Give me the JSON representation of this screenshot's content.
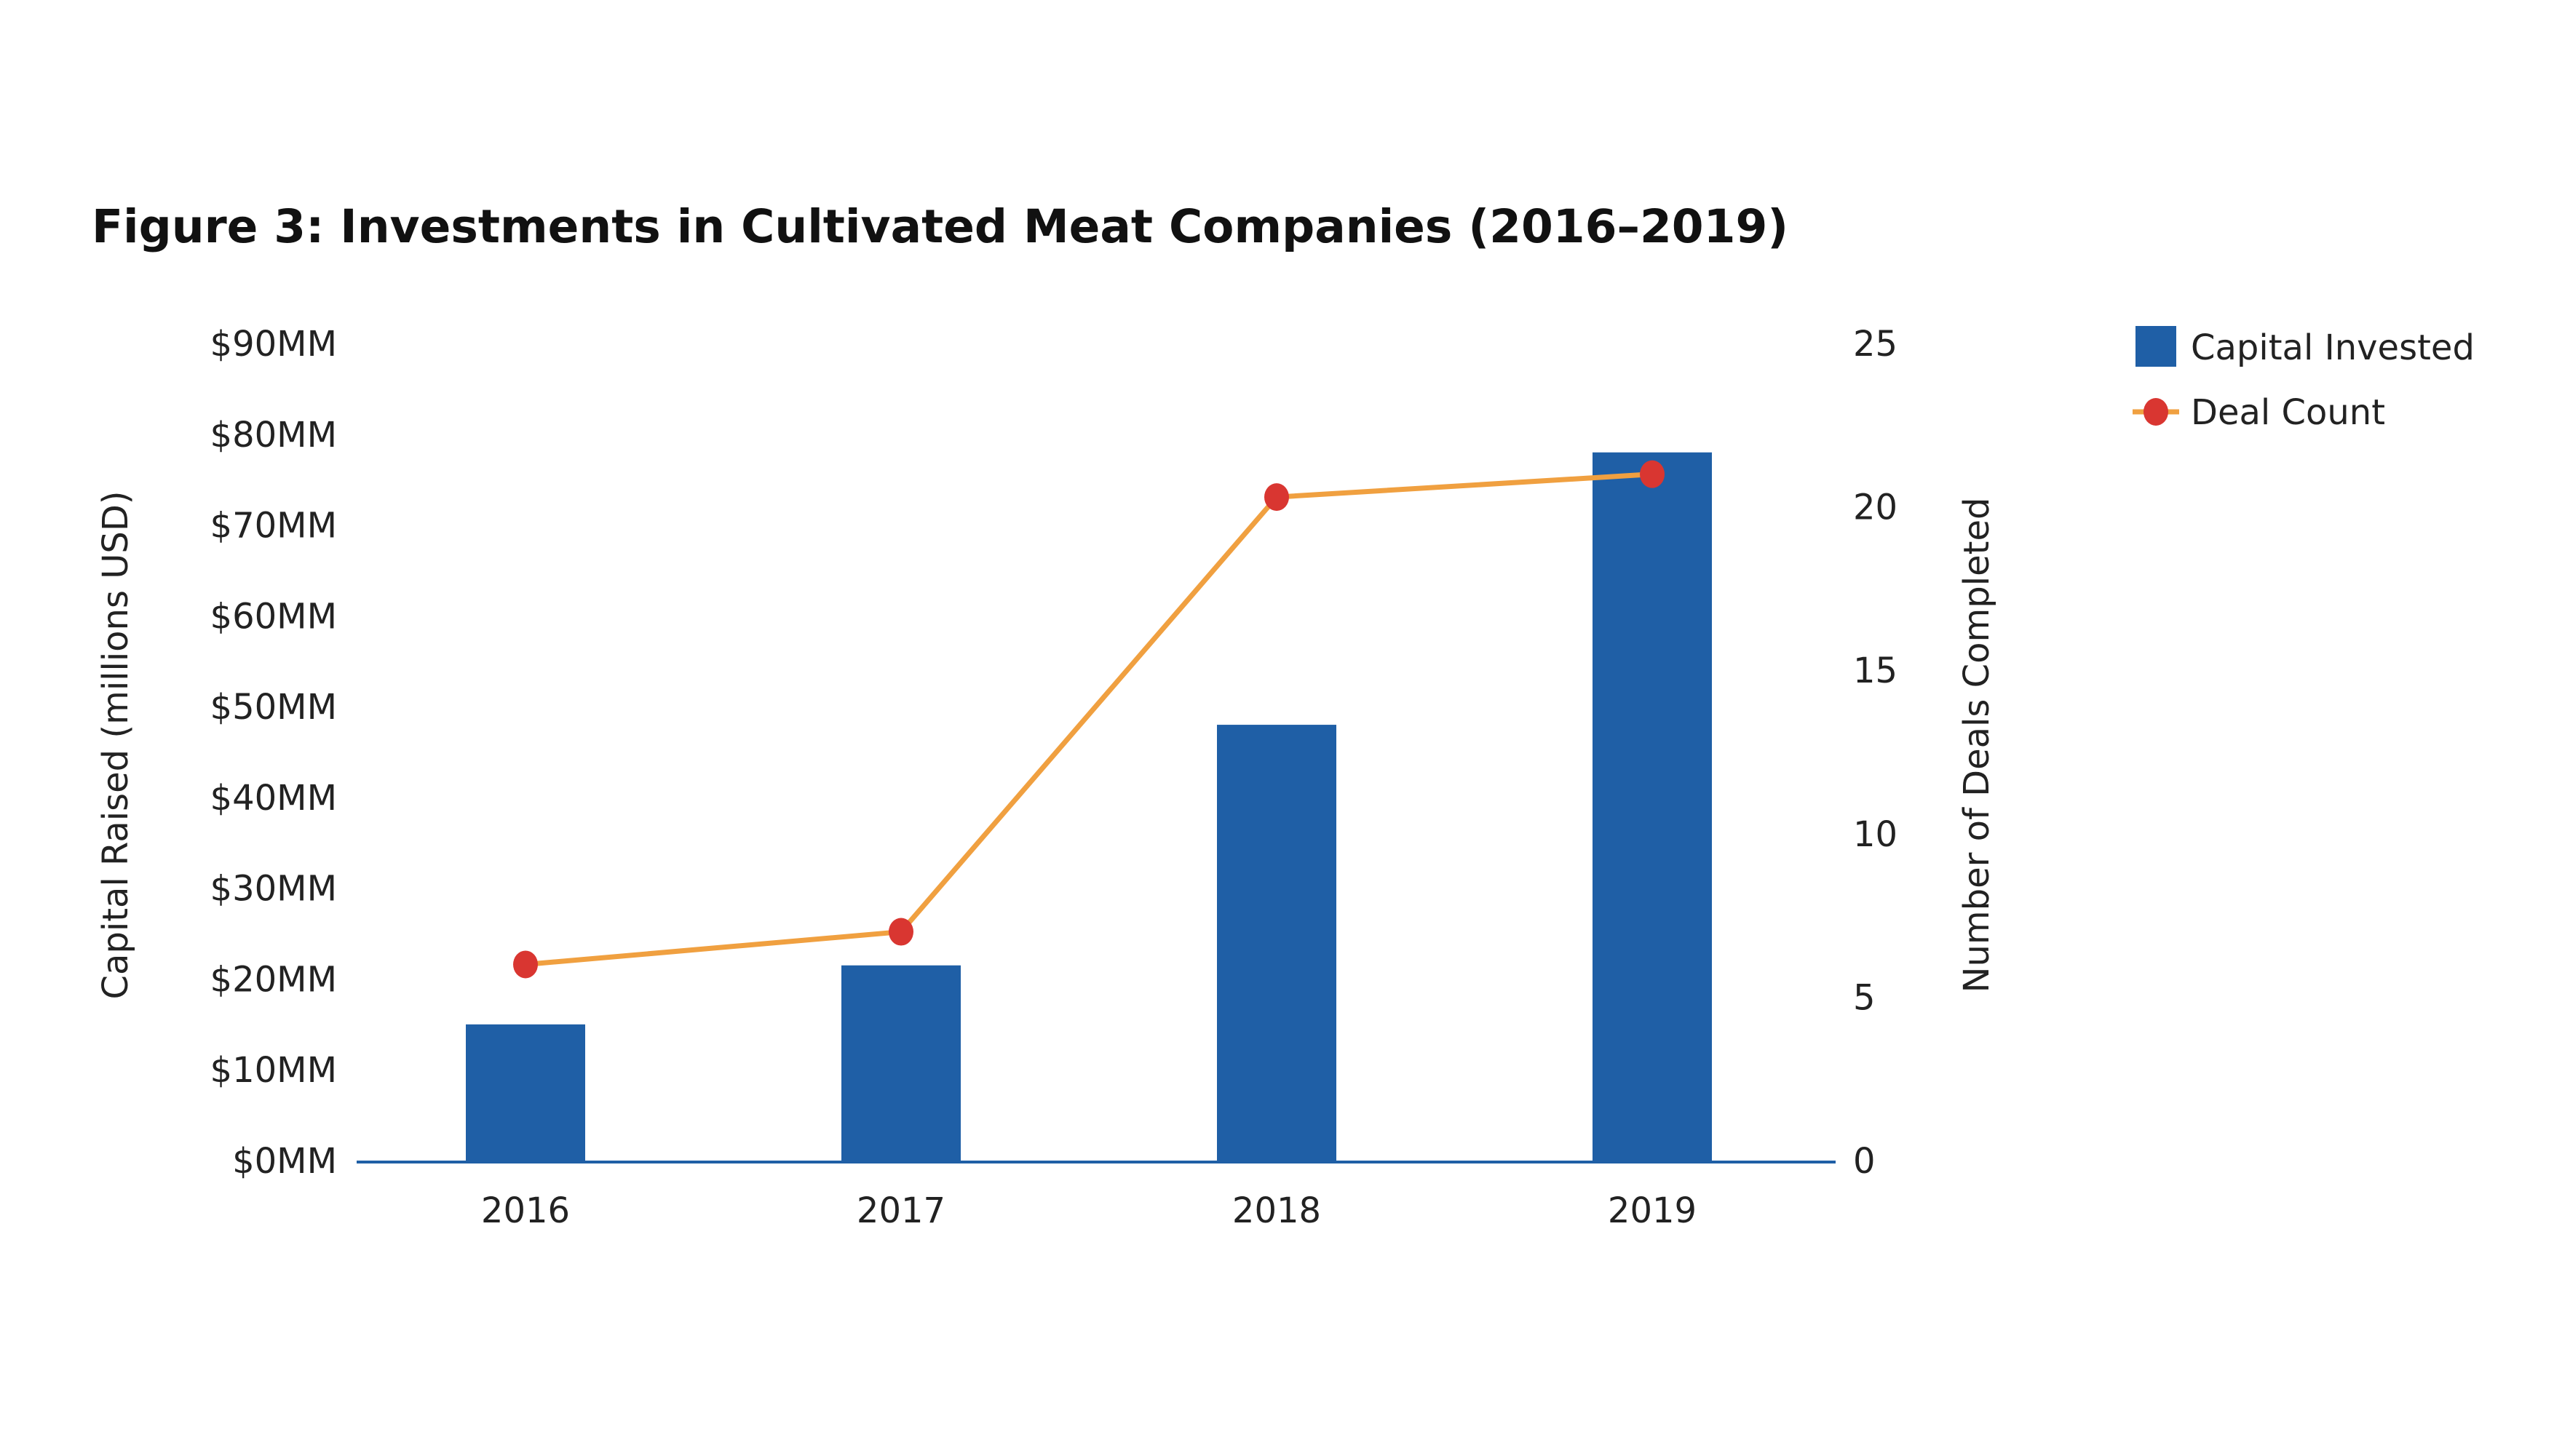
{
  "chart_data": {
    "type": "bar+line",
    "title": "Figure 3: Investments in Cultivated Meat Companies (2016–2019)",
    "categories": [
      "2016",
      "2017",
      "2018",
      "2019"
    ],
    "series": [
      {
        "name": "Capital Invested",
        "type": "bar",
        "axis": "left",
        "values": [
          15,
          21.5,
          48,
          78
        ],
        "color": "#1f5fa6"
      },
      {
        "name": "Deal Count",
        "type": "line",
        "axis": "right",
        "values": [
          6,
          7,
          20.3,
          21
        ],
        "color": "#f0a040",
        "marker_color": "#d93631"
      }
    ],
    "ylabel_left": "Capital Raised (millions USD)",
    "ylabel_right": "Number of Deals Completed",
    "ylim_left": [
      0,
      90
    ],
    "ylim_right": [
      0,
      25
    ],
    "yticks_left": [
      "$0MM",
      "$10MM",
      "$20MM",
      "$30MM",
      "$40MM",
      "$50MM",
      "$60MM",
      "$70MM",
      "$80MM",
      "$90MM"
    ],
    "yticks_right": [
      "0",
      "5",
      "10",
      "15",
      "20",
      "25"
    ],
    "grid": false,
    "legend": "top-right"
  }
}
